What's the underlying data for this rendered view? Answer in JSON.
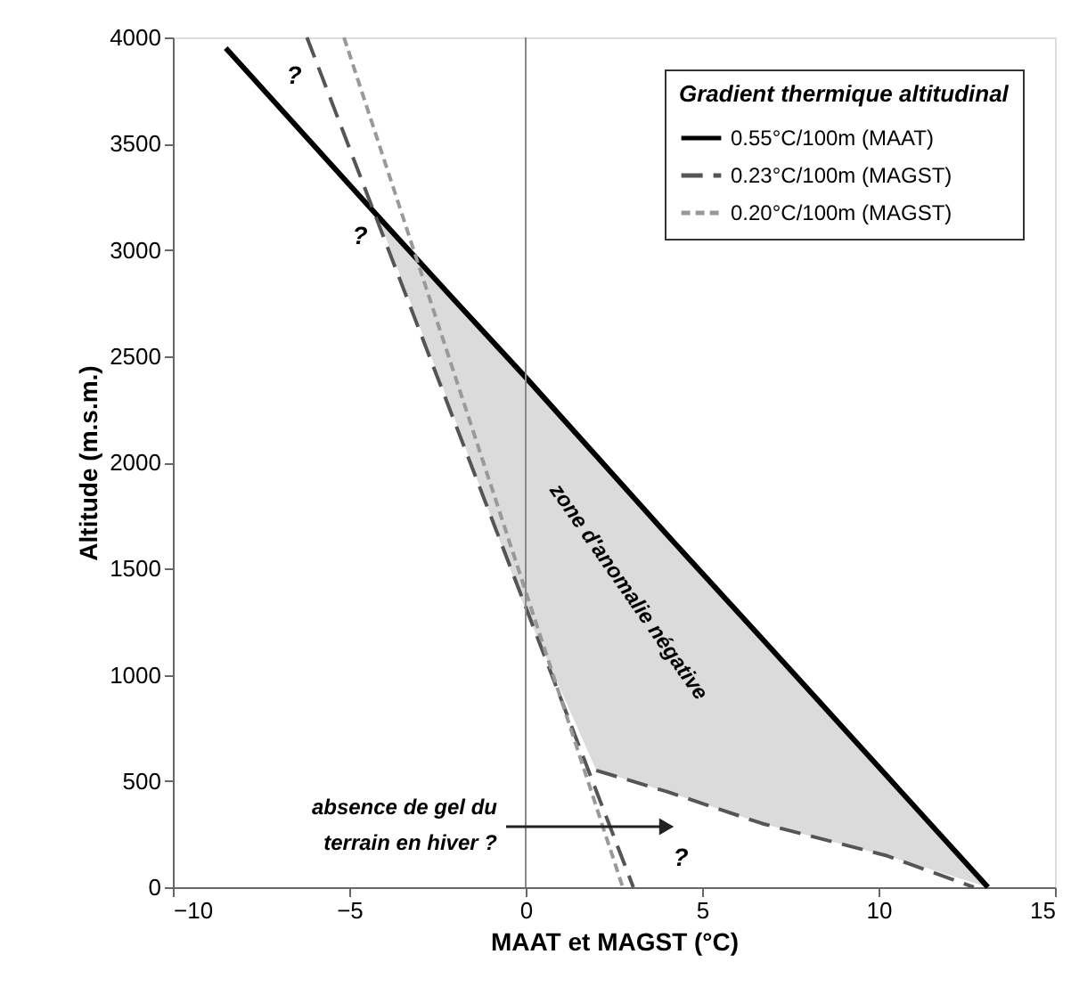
{
  "chart_data": {
    "type": "line",
    "xlabel": "MAAT et MAGST (°C)",
    "ylabel": "Altitude (m.s.m.)",
    "legend_title": "Gradient thermique altitudinal",
    "xlim": [
      -10,
      15
    ],
    "xticks": [
      -10,
      -5,
      0,
      5,
      10,
      15
    ],
    "ylim": [
      0,
      4000
    ],
    "yticks": [
      0,
      500,
      1000,
      1500,
      2000,
      2500,
      3000,
      3500,
      4000
    ],
    "grid": false,
    "legend": "top right",
    "marker": "none",
    "series": [
      {
        "name": "0.55°C/100m (MAAT)",
        "color": "#000000",
        "line_style": "solid",
        "x": [
          -8.5,
          -4.2,
          -2,
          0,
          2.0,
          4,
          6.7,
          10.2,
          13.1
        ],
        "values": [
          3950,
          3160,
          2760,
          2400,
          2030,
          1660,
          1170,
          530,
          0
        ],
        "lower": [
          null,
          3160,
          2200,
          1300,
          550,
          450,
          300,
          150,
          0
        ],
        "upper": [
          null,
          3160,
          2760,
          2400,
          2030,
          1660,
          1170,
          530,
          0
        ]
      },
      {
        "name": "0.23°C/100m (MAGST)",
        "color": "#555555",
        "line_style": "dashed",
        "x": [
          -6.2,
          3.05
        ],
        "values": [
          4000,
          0
        ]
      },
      {
        "name": "0.20°C/100m (MAGST)",
        "color": "#999999",
        "line_style": "dotted",
        "x": [
          -5.15,
          2.75
        ],
        "values": [
          4000,
          0
        ]
      },
      {
        "color": "#555555",
        "line_style": "dashed",
        "x": [
          2.0,
          4,
          6.7,
          10.2,
          12.7
        ],
        "values": [
          550,
          450,
          300,
          150,
          0
        ]
      }
    ],
    "ref_lines": [
      {
        "axis": "x",
        "value": 0,
        "color": "#888888"
      }
    ],
    "annotations": [
      "?",
      "?",
      "?",
      "zone d'anomalie négative",
      "absence de gel du\nterrain en hiver ?"
    ]
  }
}
